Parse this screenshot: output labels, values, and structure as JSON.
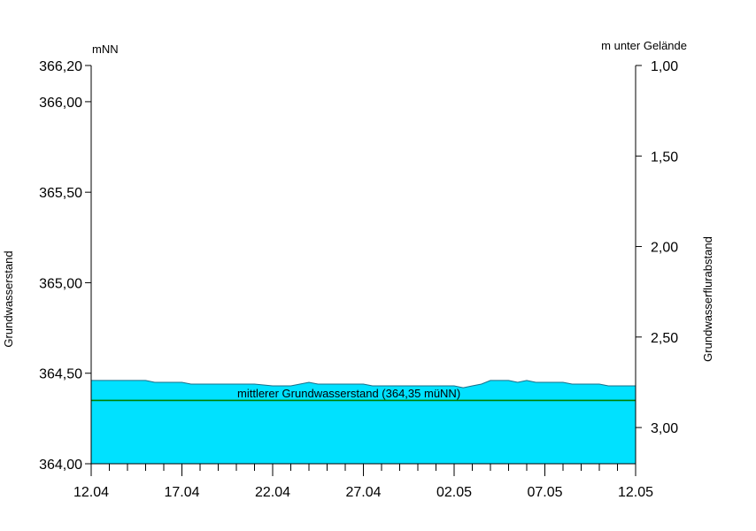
{
  "chart_data": {
    "type": "area",
    "left_axis": {
      "unit": "mNN",
      "title": "Grundwasserstand",
      "ylim": [
        364.0,
        366.2
      ],
      "ticks": [
        {
          "value": 364.0,
          "label": "364,00"
        },
        {
          "value": 364.5,
          "label": "364,50"
        },
        {
          "value": 365.0,
          "label": "365,00"
        },
        {
          "value": 365.5,
          "label": "365,50"
        },
        {
          "value": 366.0,
          "label": "366,00"
        },
        {
          "value": 366.2,
          "label": "366,20"
        }
      ]
    },
    "right_axis": {
      "unit": "m unter Gelände",
      "title": "Grundwasserflurabstand",
      "ylim": [
        3.2,
        1.0
      ],
      "inverted": true,
      "ticks": [
        {
          "value": 1.0,
          "label": "1,00"
        },
        {
          "value": 1.5,
          "label": "1,50"
        },
        {
          "value": 2.0,
          "label": "2,00"
        },
        {
          "value": 2.5,
          "label": "2,50"
        },
        {
          "value": 3.0,
          "label": "3,00"
        }
      ]
    },
    "x_axis": {
      "start": "2023-04-12",
      "end": "2023-05-12",
      "labeled_ticks": [
        {
          "date": "2023-04-12",
          "label": "12.04"
        },
        {
          "date": "2023-04-17",
          "label": "17.04"
        },
        {
          "date": "2023-04-22",
          "label": "22.04"
        },
        {
          "date": "2023-04-27",
          "label": "27.04"
        },
        {
          "date": "2023-05-02",
          "label": "02.05"
        },
        {
          "date": "2023-05-07",
          "label": "07.05"
        },
        {
          "date": "2023-05-12",
          "label": "12.05"
        }
      ]
    },
    "series": [
      {
        "fill_color": "#00e1ff",
        "points": [
          [
            "2023-04-12",
            364.46
          ],
          [
            "2023-04-13",
            364.46
          ],
          [
            "2023-04-14",
            364.46
          ],
          [
            "2023-04-15",
            364.46
          ],
          [
            "2023-04-15T12:00",
            364.45
          ],
          [
            "2023-04-16",
            364.45
          ],
          [
            "2023-04-17",
            364.45
          ],
          [
            "2023-04-17T12:00",
            364.44
          ],
          [
            "2023-04-18",
            364.44
          ],
          [
            "2023-04-19",
            364.44
          ],
          [
            "2023-04-20",
            364.44
          ],
          [
            "2023-04-21",
            364.44
          ],
          [
            "2023-04-22",
            364.43
          ],
          [
            "2023-04-23",
            364.43
          ],
          [
            "2023-04-23T12:00",
            364.44
          ],
          [
            "2023-04-24",
            364.45
          ],
          [
            "2023-04-24T12:00",
            364.44
          ],
          [
            "2023-04-25",
            364.44
          ],
          [
            "2023-04-26",
            364.44
          ],
          [
            "2023-04-27",
            364.44
          ],
          [
            "2023-04-27T12:00",
            364.43
          ],
          [
            "2023-04-28",
            364.43
          ],
          [
            "2023-04-29",
            364.43
          ],
          [
            "2023-04-30",
            364.43
          ],
          [
            "2023-05-01",
            364.43
          ],
          [
            "2023-05-02",
            364.43
          ],
          [
            "2023-05-02T12:00",
            364.42
          ],
          [
            "2023-05-03",
            364.43
          ],
          [
            "2023-05-03T12:00",
            364.44
          ],
          [
            "2023-05-04",
            364.46
          ],
          [
            "2023-05-05",
            364.46
          ],
          [
            "2023-05-05T12:00",
            364.45
          ],
          [
            "2023-05-06",
            364.46
          ],
          [
            "2023-05-06T12:00",
            364.45
          ],
          [
            "2023-05-07",
            364.45
          ],
          [
            "2023-05-08",
            364.45
          ],
          [
            "2023-05-08T12:00",
            364.44
          ],
          [
            "2023-05-09",
            364.44
          ],
          [
            "2023-05-10",
            364.44
          ],
          [
            "2023-05-10T12:00",
            364.43
          ],
          [
            "2023-05-11",
            364.43
          ],
          [
            "2023-05-12",
            364.43
          ]
        ]
      }
    ],
    "reference_line": {
      "value": 364.35,
      "label": "mittlerer Grundwasserstand (364,35 müNN)",
      "color": "#008000"
    },
    "grid": false
  }
}
